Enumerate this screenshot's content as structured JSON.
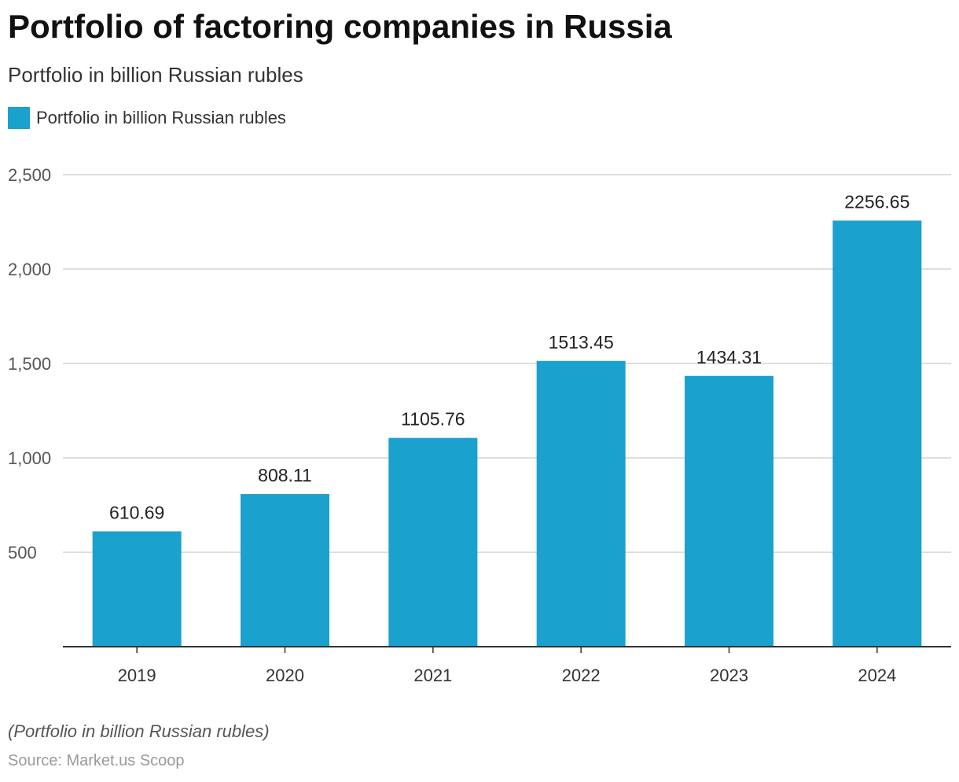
{
  "title": "Portfolio of factoring companies in Russia",
  "subtitle": "Portfolio in billion Russian rubles",
  "legend": {
    "label": "Portfolio in billion Russian rubles",
    "color": "#1ba1cd"
  },
  "footnote": "(Portfolio in billion Russian rubles)",
  "source": "Source: Market.us Scoop",
  "chart_data": {
    "type": "bar",
    "categories": [
      "2019",
      "2020",
      "2021",
      "2022",
      "2023",
      "2024"
    ],
    "series": [
      {
        "name": "Portfolio in billion Russian rubles",
        "values": [
          610.69,
          808.11,
          1105.76,
          1513.45,
          1434.31,
          2256.65
        ],
        "color": "#1ba1cd"
      }
    ],
    "data_labels": [
      "610.69",
      "808.11",
      "1105.76",
      "1513.45",
      "1434.31",
      "2256.65"
    ],
    "yticks": [
      500,
      1000,
      1500,
      2000,
      2500
    ],
    "ytick_labels": [
      "500",
      "1,000",
      "1,500",
      "2,000",
      "2,500"
    ],
    "ylim": [
      0,
      2500
    ],
    "grid": true,
    "legend_position": "top-left"
  }
}
